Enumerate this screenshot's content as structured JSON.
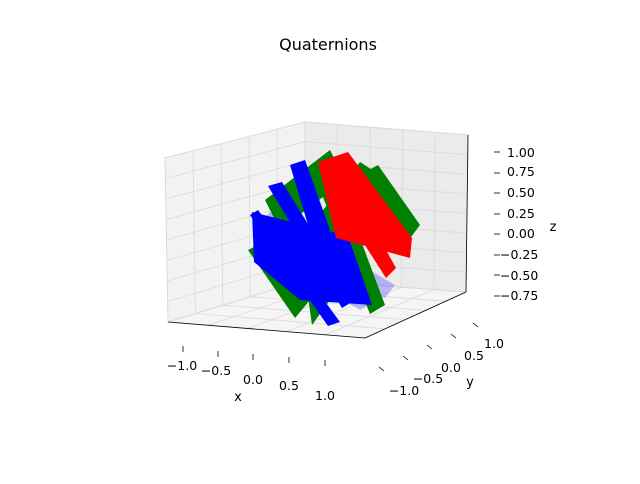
{
  "chart_data": {
    "type": "3d-surface",
    "title": "Quaternions",
    "xlabel": "x",
    "ylabel": "y",
    "zlabel": "z",
    "x_ticks": [
      "−1.0",
      "−0.5",
      "0.0",
      "0.5",
      "1.0"
    ],
    "y_ticks": [
      "−1.0",
      "−0.5",
      "0.0",
      "0.5",
      "1.0"
    ],
    "z_ticks": [
      "−0.75",
      "−0.50",
      "−0.25",
      "0.00",
      "0.25",
      "0.50",
      "0.75",
      "1.00"
    ],
    "xlim": [
      -1.2,
      1.2
    ],
    "ylim": [
      -1.2,
      1.2
    ],
    "zlim": [
      -0.9,
      1.05
    ],
    "grid": true,
    "series": [
      {
        "color": "#0000ff"
      },
      {
        "color": "#008000"
      },
      {
        "color": "#ff0000"
      }
    ]
  }
}
